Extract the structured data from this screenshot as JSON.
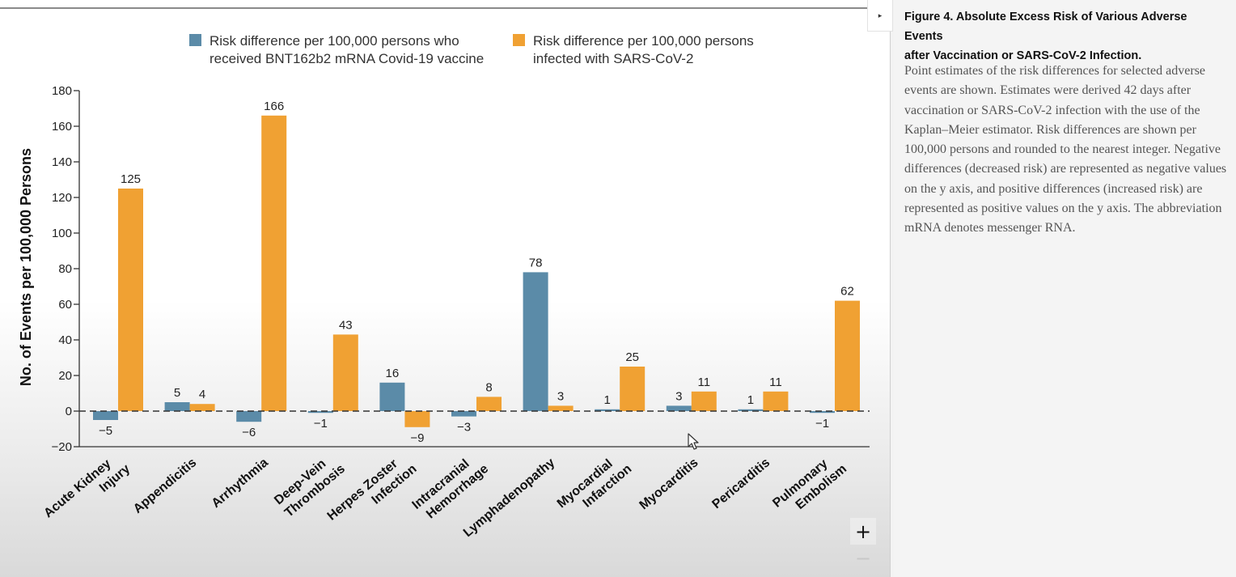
{
  "chart_data": {
    "type": "bar",
    "title": "Figure 4. Absolute Excess Risk of Various Adverse Events after Vaccination or SARS-CoV-2 Infection.",
    "ylabel": "No. of Events per 100,000 Persons",
    "xlabel": "",
    "ylim": [
      -20,
      180
    ],
    "yticks": [
      -20,
      0,
      20,
      40,
      60,
      80,
      100,
      120,
      140,
      160,
      180
    ],
    "ytick_labels": [
      "−20",
      "0",
      "20",
      "40",
      "60",
      "80",
      "100",
      "120",
      "140",
      "160",
      "180"
    ],
    "zero_line": "dashed",
    "legend_position": "top",
    "categories": [
      [
        "Acute Kidney",
        "Injury"
      ],
      [
        "Appendicitis"
      ],
      [
        "Arrhythmia"
      ],
      [
        "Deep-Vein",
        "Thrombosis"
      ],
      [
        "Herpes Zoster",
        "Infection"
      ],
      [
        "Intracranial",
        "Hemorrhage"
      ],
      [
        "Lymphadenopathy"
      ],
      [
        "Myocardial",
        "Infarction"
      ],
      [
        "Myocarditis"
      ],
      [
        "Pericarditis"
      ],
      [
        "Pulmonary",
        "Embolism"
      ]
    ],
    "series": [
      {
        "name": "Risk difference per 100,000 persons who received BNT162b2 mRNA Covid-19 vaccine",
        "legend_lines": [
          "Risk difference per 100,000 persons who",
          "received BNT162b2 mRNA Covid-19 vaccine"
        ],
        "color": "#5b8ba8",
        "values": [
          -5,
          5,
          -6,
          -1,
          16,
          -3,
          78,
          1,
          3,
          1,
          -1
        ],
        "labels": [
          "−5",
          "5",
          "−6",
          "−1",
          "16",
          "−3",
          "78",
          "1",
          "3",
          "1",
          "−1"
        ]
      },
      {
        "name": "Risk difference per 100,000 persons infected with SARS-CoV-2",
        "legend_lines": [
          "Risk difference per 100,000 persons",
          "infected with SARS-CoV-2"
        ],
        "color": "#f0a133",
        "values": [
          125,
          4,
          166,
          43,
          -9,
          8,
          3,
          25,
          11,
          11,
          62
        ],
        "labels": [
          "125",
          "4",
          "166",
          "43",
          "−9",
          "8",
          "3",
          "25",
          "11",
          "11",
          "62"
        ]
      }
    ]
  },
  "caption": {
    "title_lines": [
      "Figure 4. Absolute Excess Risk of Various Adverse Events",
      "after Vaccination or SARS-CoV-2 Infection."
    ],
    "body": "Point estimates of the risk differences for selected adverse events are shown. Estimates were derived 42 days after vaccination or SARS-CoV-2 infection with the use of the Kaplan–Meier estimator. Risk differences are shown per 100,000 persons and rounded to the nearest integer. Negative differences (decreased risk) are represented as negative values on the y axis, and positive differences (increased risk) are represented as positive values on the y axis. The abbreviation mRNA denotes messenger RNA."
  },
  "controls": {
    "collapse_icon": "triangle-right-icon",
    "collapse_glyph": "▸",
    "zoom_in_icon": "plus-icon",
    "zoom_in_label": "+",
    "zoom_out_icon": "minus-icon",
    "zoom_out_label": "−"
  }
}
